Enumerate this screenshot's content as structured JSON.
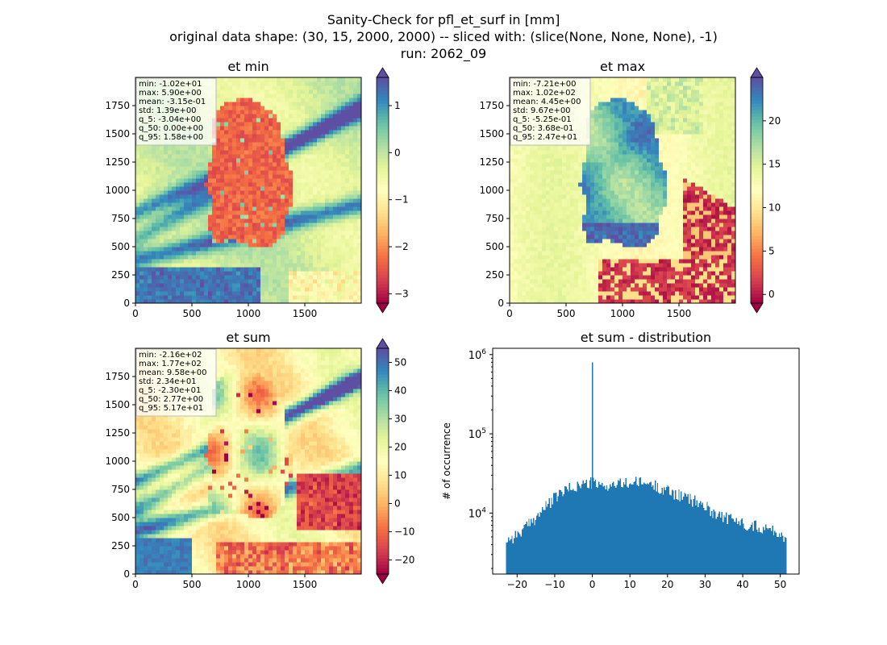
{
  "figure": {
    "title_lines": [
      "Sanity-Check for pfl_et_surf in [mm]",
      "original data shape: (30, 15, 2000, 2000) -- sliced with: (slice(None, None, None), -1)",
      "run: 2062_09"
    ]
  },
  "chart_data": [
    {
      "type": "heatmap",
      "title": "et min",
      "x_ticks": [
        0,
        500,
        1000,
        1500
      ],
      "y_ticks": [
        0,
        250,
        500,
        750,
        1000,
        1250,
        1500,
        1750
      ],
      "x_range": [
        0,
        2000
      ],
      "y_range": [
        0,
        2000
      ],
      "colormap": "Spectral",
      "colorbar": {
        "ticks": [
          1,
          0,
          -1,
          -2,
          -3
        ],
        "range": [
          -3.2,
          1.6
        ],
        "extend": "both"
      },
      "stats": [
        "min: -1.02e+01",
        "max: 5.90e+00",
        "mean: -3.15e-01",
        "std: 1.39e+00",
        "q_5: -3.04e+00",
        "q_50: 0.00e+00",
        "q_95: 1.58e+00"
      ]
    },
    {
      "type": "heatmap",
      "title": "et max",
      "x_ticks": [
        0,
        500,
        1000,
        1500
      ],
      "y_ticks": [
        0,
        250,
        500,
        750,
        1000,
        1250,
        1500,
        1750
      ],
      "x_range": [
        0,
        2000
      ],
      "y_range": [
        0,
        2000
      ],
      "colormap": "Spectral",
      "colorbar": {
        "ticks": [
          20,
          15,
          10,
          5,
          0
        ],
        "range": [
          -1,
          25
        ],
        "extend": "both"
      },
      "stats": [
        "min: -7.21e+00",
        "max: 1.02e+02",
        "mean: 4.45e+00",
        "std: 9.67e+00",
        "q_5: -5.25e-01",
        "q_50: 3.68e-01",
        "q_95: 2.47e+01"
      ]
    },
    {
      "type": "heatmap",
      "title": "et sum",
      "x_ticks": [
        0,
        500,
        1000,
        1500
      ],
      "y_ticks": [
        0,
        250,
        500,
        750,
        1000,
        1250,
        1500,
        1750
      ],
      "x_range": [
        0,
        2000
      ],
      "y_range": [
        0,
        2000
      ],
      "colormap": "Spectral",
      "colorbar": {
        "ticks": [
          50,
          40,
          30,
          20,
          10,
          0,
          -10,
          -20
        ],
        "range": [
          -25,
          55
        ],
        "extend": "both"
      },
      "stats": [
        "min: -2.16e+02",
        "max: 1.77e+02",
        "mean: 9.58e+00",
        "std: 2.34e+01",
        "q_5: -2.30e+01",
        "q_50: 2.77e+00",
        "q_95: 5.17e+01"
      ]
    },
    {
      "type": "bar",
      "title": "et sum - distribution",
      "ylabel": "# of occurrence",
      "yscale": "log",
      "x_ticks": [
        -20,
        -10,
        0,
        10,
        20,
        30,
        40,
        50
      ],
      "xlim": [
        -26.5,
        55
      ],
      "ylim": [
        1700,
        1200000
      ],
      "y_ticks": [
        10000,
        100000,
        1000000
      ],
      "y_tick_labels": [
        [
          "10",
          "4"
        ],
        [
          "10",
          "5"
        ],
        [
          "10",
          "6"
        ]
      ],
      "bin_range": [
        -23.0,
        51.7
      ],
      "bin_width": 0.3,
      "color": "#1f77b4",
      "spike": {
        "x": 0.0,
        "count": 800000
      },
      "profile_x": [
        -23,
        -21,
        -18,
        -15,
        -12,
        -9,
        -6,
        -3,
        -1,
        0,
        2,
        5,
        8,
        11,
        14,
        17,
        20,
        23,
        26,
        29,
        32,
        35,
        38,
        41,
        44,
        47,
        50,
        51.7
      ],
      "profile_y": [
        4600,
        5000,
        6300,
        8800,
        12500,
        17000,
        20500,
        23000,
        23500,
        24500,
        21500,
        22500,
        23500,
        24500,
        24000,
        22000,
        19500,
        17000,
        15000,
        13000,
        10500,
        9000,
        8000,
        7300,
        6800,
        6300,
        5500,
        4500
      ]
    }
  ]
}
